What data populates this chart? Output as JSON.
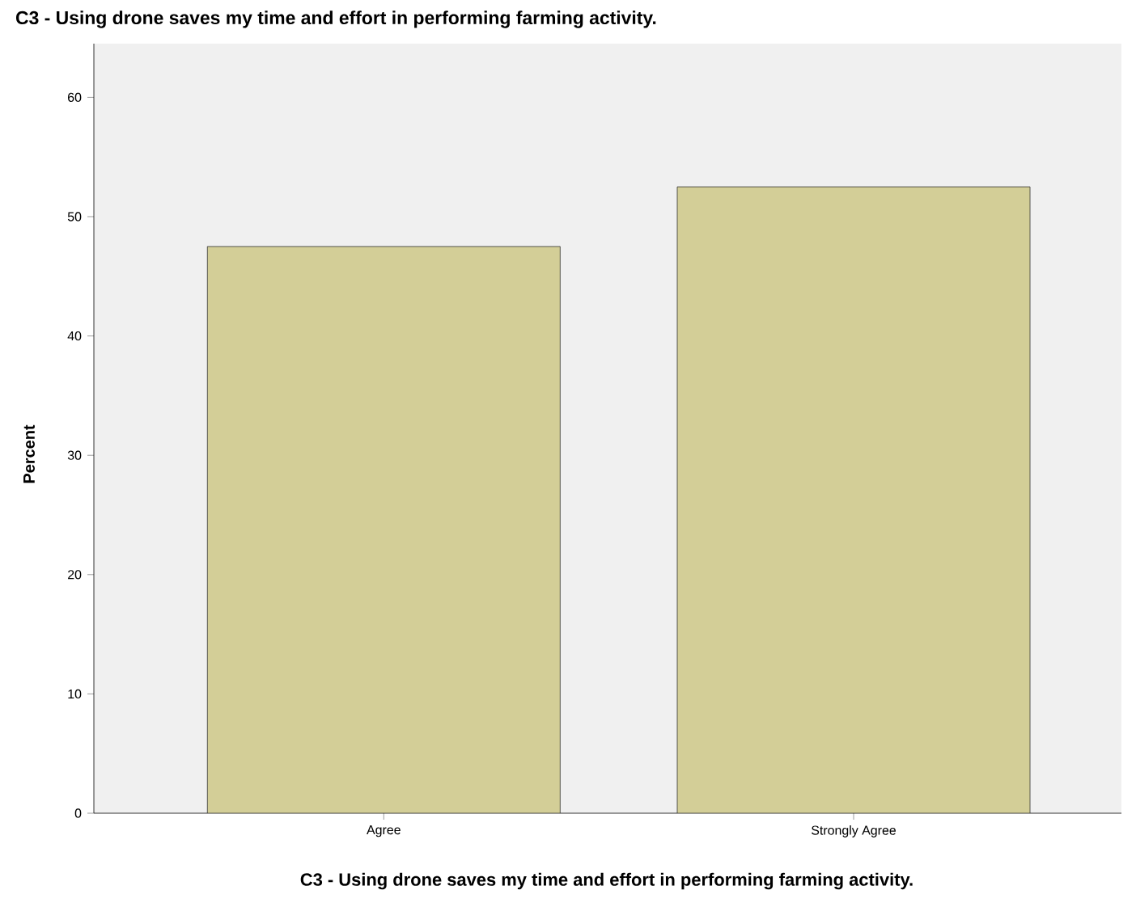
{
  "chart_data": {
    "type": "bar",
    "title": "C3 - Using drone saves my time and effort in performing farming activity.",
    "xlabel": "C3 - Using drone saves my time and effort in performing farming activity.",
    "ylabel": "Percent",
    "categories": [
      "Agree",
      "Strongly Agree"
    ],
    "values": [
      47.5,
      52.5
    ],
    "color": "#d3ce97",
    "ylim": [
      0,
      64.5
    ],
    "yticks": [
      0,
      10,
      20,
      30,
      40,
      50,
      60
    ],
    "grid": false
  }
}
